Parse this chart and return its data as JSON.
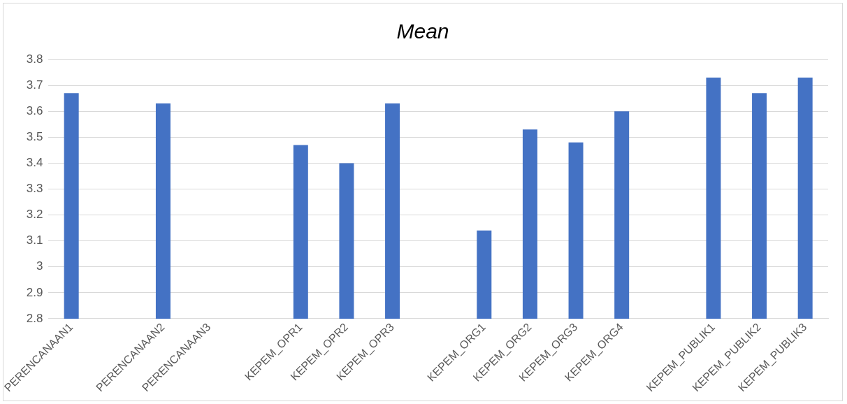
{
  "chart_data": {
    "type": "bar",
    "title": "Mean",
    "categories": [
      "PERENCANAAN1",
      null,
      "PERENCANAAN2",
      "PERENCANAAN3",
      null,
      "KEPEM_OPR1",
      "KEPEM_OPR2",
      "KEPEM_OPR3",
      null,
      "KEPEM_ORG1",
      "KEPEM_ORG2",
      "KEPEM_ORG3",
      "KEPEM_ORG4",
      null,
      "KEPEM_PUBLIK1",
      "KEPEM_PUBLIK2",
      "KEPEM_PUBLIK3"
    ],
    "values": [
      3.67,
      null,
      3.63,
      null,
      null,
      3.47,
      3.4,
      3.63,
      null,
      3.14,
      3.53,
      3.48,
      3.6,
      null,
      3.73,
      3.67,
      3.73
    ],
    "color": "#4472c4",
    "ylim": [
      2.8,
      3.8
    ],
    "yticks": [
      2.8,
      2.9,
      3,
      3.1,
      3.2,
      3.3,
      3.4,
      3.5,
      3.6,
      3.7,
      3.8
    ],
    "grid": "y",
    "legend": false
  }
}
